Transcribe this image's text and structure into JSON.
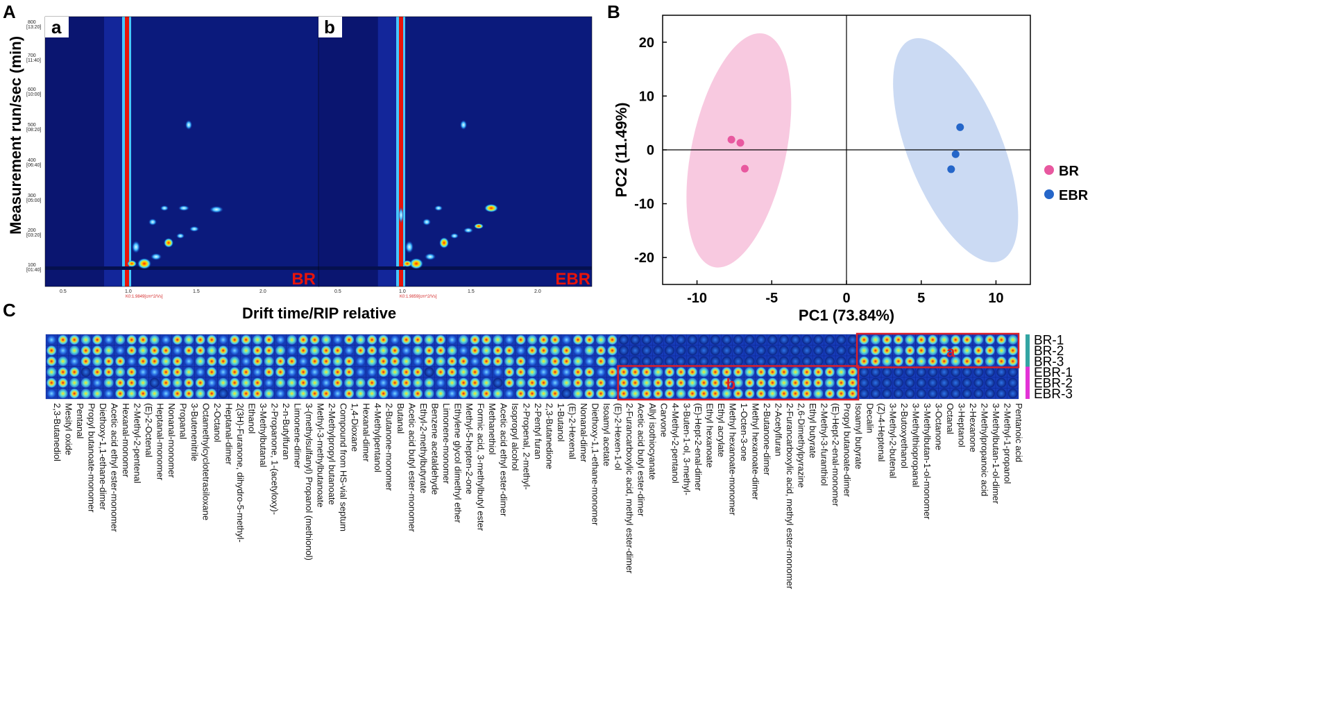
{
  "panels": {
    "A": "A",
    "B": "B",
    "C": "C"
  },
  "gc_ims": {
    "ylabel": "Measurement run/sec (min)",
    "xlabel": "Drift time/RIP relative",
    "ticks_y": [
      "800",
      "[13:20]",
      "700",
      "[11:40]",
      "600",
      "[10:00]",
      "500",
      "[08:20]",
      "400",
      "[06:40]",
      "300",
      "[05:00]",
      "200",
      "[03:20]",
      "100",
      "[01:40]"
    ],
    "ticks_x": [
      "0.5",
      "1.0",
      "1.5",
      "2.0"
    ],
    "sub": [
      {
        "letter": "a",
        "name": "BR",
        "rip": "K0:1.9849[cm^2/Vs]"
      },
      {
        "letter": "b",
        "name": "EBR",
        "rip": "K0:1.9859[cm^2/Vs]"
      }
    ]
  },
  "chart_data": {
    "type": "scatter",
    "title": "",
    "xlabel": "PC1 (73.84%)",
    "ylabel": "PC2 (11.49%)",
    "xlim": [
      -12.3,
      12.3
    ],
    "ylim": [
      -25,
      25
    ],
    "xticks": [
      -10,
      -5,
      0,
      5,
      10
    ],
    "yticks": [
      20,
      10,
      0,
      -10,
      -20
    ],
    "legend_position": "right",
    "series": [
      {
        "name": "BR",
        "color": "#e8589f",
        "ellipse_color": "#f7c3dd",
        "points": [
          [
            -7.7,
            1.9
          ],
          [
            -7.1,
            1.3
          ],
          [
            -6.8,
            -3.5
          ]
        ]
      },
      {
        "name": "EBR",
        "color": "#2566c9",
        "ellipse_color": "#c5d6f2",
        "points": [
          [
            7.6,
            4.2
          ],
          [
            7.3,
            -0.8
          ],
          [
            7.0,
            -3.6
          ]
        ]
      }
    ]
  },
  "heatmap": {
    "rows": [
      "BR-1",
      "BR-2",
      "BR-3",
      "EBR-1",
      "EBR-2",
      "EBR-3"
    ],
    "row_colors": {
      "BR": "#33a5a3",
      "EBR": "#e333d6"
    },
    "box_a": "a",
    "box_b": "b",
    "compounds": [
      "2,3-Butanediol",
      "Mesityl oxide",
      "Pentanal",
      "Propyl butanoate-monomer",
      "Diethoxy-1,1-ethane-dimer",
      "Acetic acid ethyl ester-monomer",
      "Hexanal-monomer",
      "2-Methyl-2-pentenal",
      "(E)-2-Octenal",
      "Heptanal-monomer",
      "Nonanal-monomer",
      "Propanal",
      "3-Butenenitrile",
      "Octamethylcyclotetrasiloxane",
      "2-Octanol",
      "Heptanal-dimer",
      "2(3H)-Furanone, dihydro-5-methyl-",
      "Ethanol",
      "3-Methylbutanal",
      "2-Propanone, 1-(acetyloxy)-",
      "2-n-Butylfuran",
      "Limonene-dimer",
      "3-(methylsulfanyl) Propanol (methionol)",
      "Methyl-3-methylbutanoate",
      "2-Methylpropyl butanoate",
      "Compound from HS-vial septum",
      "1,4-Dioxane",
      "Hexanal-dimer",
      "4-Methylpentanol",
      "2-Butanone-monomer",
      "Butanal",
      "Acetic acid butyl ester-monomer",
      "Ethyl-2-methylbutyrate",
      "Benzene acetaldehyde",
      "Limonene-monomer",
      "Ethylene glycol dimethyl ether",
      "Methyl-5-hepten-2-one",
      "Formic acid, 3-methylbutyl ester",
      "Methanethiol",
      "Acetic acid ethyl ester-dimer",
      "Isopropyl alcohol",
      "2-Propenal, 2-methyl-",
      "2-Pentyl furan",
      "2,3-Butanedione",
      "1-Butanol",
      "(E)-2-Hexenal",
      "Nonanal-dimer",
      "Diethoxy-1,1-ethane-monomer",
      "Isoamyl acetate",
      "(E)-2-Hexen-1-ol",
      "2-Furancarboxylic acid, methyl ester-dimer",
      "Acetic acid butyl ester-dimer",
      "Allyl isothiocyanate",
      "Carvone",
      "4-Methyl-2-pentanol",
      "3-Buten-1-ol, 3-methyl-",
      "(E)-Hept-2-enal-dimer",
      "Ethyl hexanoate",
      "Ethyl acrylate",
      "Methyl hexanoate-monomer",
      "1-Octen-3-one",
      "Methyl hexanoate-dimer",
      "2-Butanone-dimer",
      "2-Acetylfuran",
      "2-Furancarboxylic acid, methyl ester-monomer",
      "2,6-Dimethylpyrazine",
      "Ethyl butyrate",
      "2-Methyl-3-furanthiol",
      "(E)-Hept-2-enal-monomer",
      "Propyl butanoate-dimer",
      "Isoamyl butyrate",
      "Decalin",
      "(Z)-4-Heptenal",
      "3-Methyl-2-butenal",
      "2-Butoxyethanol",
      "3-Methylthiopropanal",
      "3-Methylbutan-1-ol-monomer",
      "3-Octanone",
      "Octanal",
      "3-Heptanol",
      "2-Hexanone",
      "2-Methylpropanoic acid",
      "3-Methylbutan-1-ol-dimer",
      "2-Methyl-1-propanol",
      "Pentanoic acid"
    ]
  }
}
